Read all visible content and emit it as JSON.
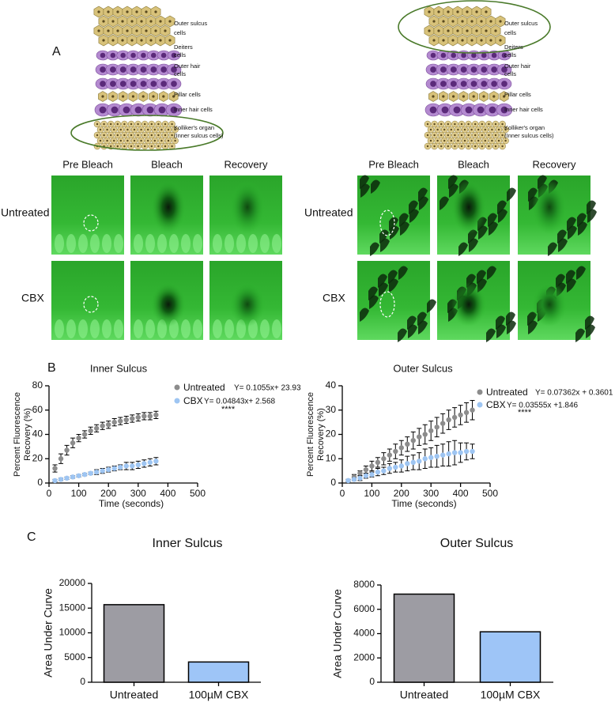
{
  "panels": [
    "A",
    "B",
    "C"
  ],
  "diagram": {
    "labels": [
      [
        "Outer sulcus",
        "cells"
      ],
      [
        "Deiters",
        "cells"
      ],
      [
        "Outer hair",
        "cells"
      ],
      [
        "Pillar cells"
      ],
      [
        "Inner hair cells"
      ],
      [
        "Kolliker's organ",
        "(Inner sulcus cells)"
      ]
    ]
  },
  "images": {
    "columns": [
      "Pre Bleach",
      "Bleach",
      "Recovery"
    ],
    "rows": [
      "Untreated",
      "CBX"
    ]
  },
  "chart_data": [
    {
      "type": "scatter",
      "title": "Inner Sulcus",
      "xlabel": "Time (seconds)",
      "ylabel": [
        "Percent Fluorescence",
        "Recovery (%)"
      ],
      "x": [
        20,
        40,
        60,
        80,
        100,
        120,
        140,
        160,
        180,
        200,
        220,
        240,
        260,
        280,
        300,
        320,
        340,
        360
      ],
      "series": [
        {
          "name": "Untreated",
          "color": "#8c8c8c",
          "equation": "Y= 0.1055x+ 23.93",
          "values": [
            12,
            20,
            27,
            33,
            37,
            40,
            43,
            45,
            47,
            48,
            50,
            51,
            52,
            53,
            54,
            55,
            55,
            56
          ],
          "errors": [
            3,
            4,
            4,
            4,
            3,
            3,
            3,
            3,
            3,
            3,
            3,
            3,
            3,
            3,
            3,
            3,
            3,
            3
          ]
        },
        {
          "name": "CBX",
          "color": "#9ec5f2",
          "equation": "Y= 0.04843x+ 2.568",
          "values": [
            2,
            3,
            4,
            5,
            6,
            7,
            8,
            9,
            10,
            11,
            12,
            13,
            14,
            14,
            15,
            16,
            17,
            18
          ],
          "errors": [
            1,
            1,
            1,
            1,
            1,
            1,
            1,
            2,
            2,
            2,
            2,
            2,
            3,
            3,
            3,
            3,
            3,
            3
          ]
        }
      ],
      "significance": "****",
      "xlim": [
        0,
        500
      ],
      "xticks": [
        0,
        100,
        200,
        300,
        400,
        500
      ],
      "ylim": [
        0,
        80
      ],
      "yticks": [
        0,
        20,
        40,
        60,
        80
      ]
    },
    {
      "type": "scatter",
      "title": "Outer Sulcus",
      "xlabel": "Time (seconds)",
      "ylabel": [
        "Percent Fluorescence",
        "Recovery (%)"
      ],
      "x": [
        20,
        40,
        60,
        80,
        100,
        120,
        140,
        160,
        180,
        200,
        220,
        240,
        260,
        280,
        300,
        320,
        340,
        360,
        380,
        400,
        420,
        440
      ],
      "series": [
        {
          "name": "Untreated",
          "color": "#8c8c8c",
          "equation": "Y= 0.07362x + 0.3601",
          "values": [
            1,
            2.5,
            4,
            5.5,
            7,
            8.5,
            10,
            11.5,
            13,
            14.5,
            16,
            17.5,
            19,
            20,
            21.5,
            23,
            24.5,
            26,
            27,
            28,
            29,
            30
          ],
          "errors": [
            0.5,
            1,
            1,
            1.5,
            2,
            2,
            2.5,
            2.5,
            3,
            3,
            3,
            3.5,
            3.5,
            4,
            4,
            4,
            4,
            4,
            4,
            4,
            4,
            4
          ]
        },
        {
          "name": "CBX",
          "color": "#9ec5f2",
          "equation": "Y= 0.03555x +1.846",
          "values": [
            1,
            1.5,
            2,
            3,
            3.5,
            4.5,
            5,
            6,
            6.5,
            7,
            8,
            8.5,
            9,
            10,
            10.5,
            11,
            11.5,
            12,
            12.5,
            12.5,
            13,
            13
          ],
          "errors": [
            0.5,
            0.5,
            1,
            1,
            1,
            1.5,
            1.5,
            2,
            2,
            2.5,
            3,
            3,
            3.5,
            4,
            4,
            4.5,
            4.5,
            5,
            5,
            4,
            3.5,
            3
          ]
        }
      ],
      "significance": "****",
      "xlim": [
        0,
        500
      ],
      "xticks": [
        0,
        100,
        200,
        300,
        400,
        500
      ],
      "ylim": [
        0,
        40
      ],
      "yticks": [
        0,
        10,
        20,
        30,
        40
      ]
    },
    {
      "type": "bar",
      "title": "Inner Sulcus",
      "ylabel": "Area Under Curve",
      "categories": [
        "Untreated",
        "100µM CBX"
      ],
      "values": [
        15700,
        4100
      ],
      "colors": [
        "#9d9ca3",
        "#9ec5f7"
      ],
      "ylim": [
        0,
        20000
      ],
      "yticks": [
        0,
        5000,
        10000,
        15000,
        20000
      ]
    },
    {
      "type": "bar",
      "title": "Outer Sulcus",
      "ylabel": "Area Under Curve",
      "categories": [
        "Untreated",
        "100µM CBX"
      ],
      "values": [
        7250,
        4150
      ],
      "colors": [
        "#9d9ca3",
        "#9ec5f7"
      ],
      "ylim": [
        0,
        8000
      ],
      "yticks": [
        0,
        2000,
        4000,
        6000,
        8000
      ]
    }
  ]
}
